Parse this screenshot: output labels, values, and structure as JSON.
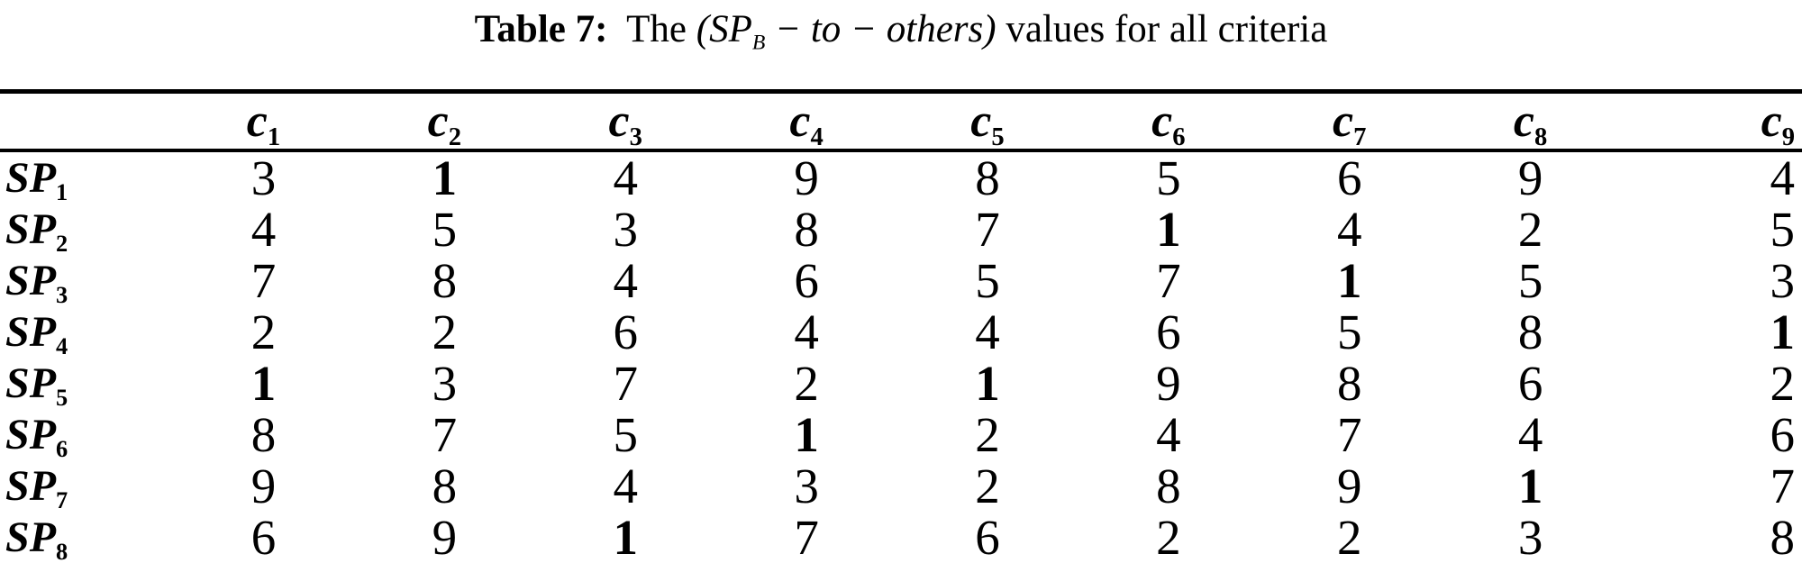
{
  "caption": {
    "label": "Table 7:",
    "pre": "  The ",
    "math_open": "(SP",
    "math_sub": "B",
    "math_rest": " − to − others)",
    "suffix": " values for all criteria"
  },
  "table": {
    "row_label_base": "SP",
    "columns": [
      {
        "base": "c",
        "sub": "1"
      },
      {
        "base": "c",
        "sub": "2"
      },
      {
        "base": "c",
        "sub": "3"
      },
      {
        "base": "c",
        "sub": "4"
      },
      {
        "base": "c",
        "sub": "5"
      },
      {
        "base": "c",
        "sub": "6"
      },
      {
        "base": "c",
        "sub": "7"
      },
      {
        "base": "c",
        "sub": "8"
      },
      {
        "base": "c",
        "sub": "9"
      }
    ],
    "rows": [
      {
        "sub": "1",
        "cells": [
          {
            "v": "3"
          },
          {
            "v": "1",
            "bold": true
          },
          {
            "v": "4"
          },
          {
            "v": "9"
          },
          {
            "v": "8"
          },
          {
            "v": "5"
          },
          {
            "v": "6"
          },
          {
            "v": "9"
          },
          {
            "v": "4"
          }
        ]
      },
      {
        "sub": "2",
        "cells": [
          {
            "v": "4"
          },
          {
            "v": "5"
          },
          {
            "v": "3"
          },
          {
            "v": "8"
          },
          {
            "v": "7"
          },
          {
            "v": "1",
            "bold": true
          },
          {
            "v": "4"
          },
          {
            "v": "2"
          },
          {
            "v": "5"
          }
        ]
      },
      {
        "sub": "3",
        "cells": [
          {
            "v": "7"
          },
          {
            "v": "8"
          },
          {
            "v": "4"
          },
          {
            "v": "6"
          },
          {
            "v": "5"
          },
          {
            "v": "7"
          },
          {
            "v": "1",
            "bold": true
          },
          {
            "v": "5"
          },
          {
            "v": "3"
          }
        ]
      },
      {
        "sub": "4",
        "cells": [
          {
            "v": "2"
          },
          {
            "v": "2"
          },
          {
            "v": "6"
          },
          {
            "v": "4"
          },
          {
            "v": "4"
          },
          {
            "v": "6"
          },
          {
            "v": "5"
          },
          {
            "v": "8"
          },
          {
            "v": "1",
            "bold": true
          }
        ]
      },
      {
        "sub": "5",
        "cells": [
          {
            "v": "1",
            "bold": true
          },
          {
            "v": "3"
          },
          {
            "v": "7"
          },
          {
            "v": "2"
          },
          {
            "v": "1",
            "bold": true
          },
          {
            "v": "9"
          },
          {
            "v": "8"
          },
          {
            "v": "6"
          },
          {
            "v": "2"
          }
        ]
      },
      {
        "sub": "6",
        "cells": [
          {
            "v": "8"
          },
          {
            "v": "7"
          },
          {
            "v": "5"
          },
          {
            "v": "1",
            "bold": true
          },
          {
            "v": "2"
          },
          {
            "v": "4"
          },
          {
            "v": "7"
          },
          {
            "v": "4"
          },
          {
            "v": "6"
          }
        ]
      },
      {
        "sub": "7",
        "cells": [
          {
            "v": "9"
          },
          {
            "v": "8"
          },
          {
            "v": "4"
          },
          {
            "v": "3"
          },
          {
            "v": "2"
          },
          {
            "v": "8"
          },
          {
            "v": "9"
          },
          {
            "v": "1",
            "bold": true
          },
          {
            "v": "7"
          }
        ]
      },
      {
        "sub": "8",
        "cells": [
          {
            "v": "6"
          },
          {
            "v": "9"
          },
          {
            "v": "1",
            "bold": true
          },
          {
            "v": "7"
          },
          {
            "v": "6"
          },
          {
            "v": "2"
          },
          {
            "v": "2"
          },
          {
            "v": "3"
          },
          {
            "v": "8"
          }
        ]
      }
    ]
  },
  "colors": {
    "text": "#000000",
    "background": "#ffffff",
    "rule": "#000000"
  }
}
